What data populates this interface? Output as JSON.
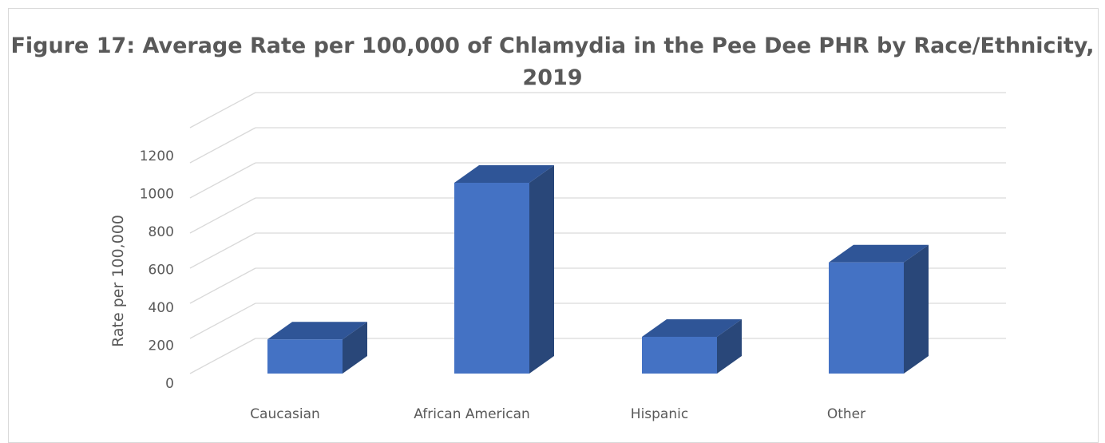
{
  "chart_data": {
    "type": "bar",
    "title": "Figure 17: Average Rate per 100,000 of Chlamydia in the Pee Dee PHR by Race/Ethnicity, 2019",
    "categories": [
      "Caucasian",
      "African American",
      "Hispanic",
      "Other"
    ],
    "values": [
      195,
      1090,
      210,
      635
    ],
    "xlabel": "",
    "ylabel": "Rate per 100,000",
    "ylim": [
      0,
      1200
    ],
    "yticks": [
      "0",
      "200",
      "400",
      "600",
      "800",
      "1000",
      "1200"
    ],
    "grid": true,
    "legend": "none",
    "style": "3-D column"
  },
  "colors": {
    "bar_front": "#4472c4",
    "bar_top": "#2f5597",
    "bar_side": "#294779",
    "grid": "#d9d9d9",
    "text": "#595959"
  }
}
